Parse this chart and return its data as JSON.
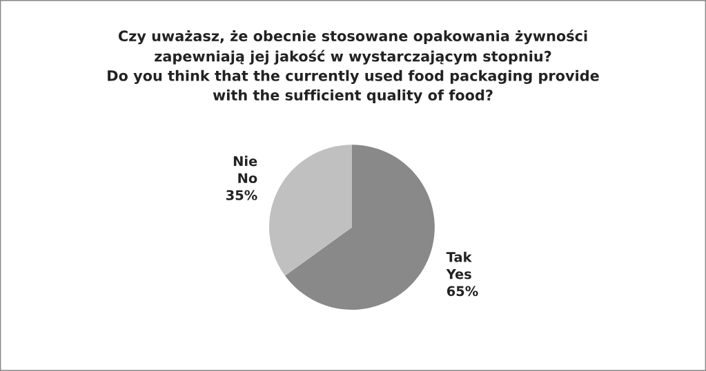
{
  "chart_data": {
    "type": "pie",
    "title": "Czy uważasz, że obecnie stosowane opakowania żywności\nzapewniają jej jakość w wystarczającym stopniu?\nDo you think that the currently used food packaging provide\nwith the sufficient quality of food?",
    "categories": [
      "Tak\nYes",
      "Nie\nNo"
    ],
    "values": [
      65,
      35
    ],
    "value_labels": [
      "65%",
      "35%"
    ],
    "colors": [
      "#898989",
      "#c0c0c0"
    ],
    "legend": false
  }
}
